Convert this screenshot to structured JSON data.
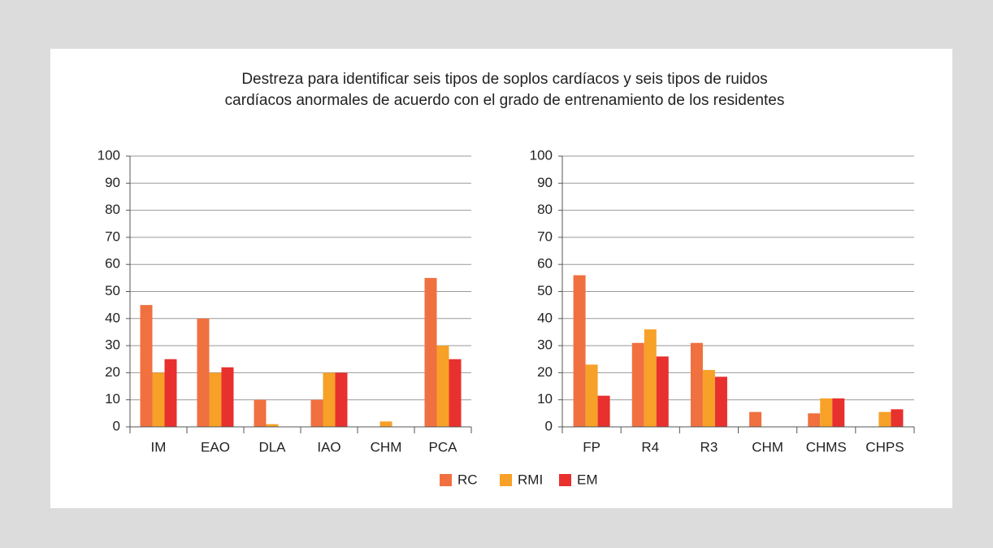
{
  "title": [
    "Destreza para identificar seis tipos de soplos cardíacos y seis tipos de ruidos",
    "cardíacos anormales de acuerdo con el grado de entrenamiento de los residentes"
  ],
  "chart_data": [
    {
      "type": "bar",
      "categories": [
        "IM",
        "EAO",
        "DLA",
        "IAO",
        "CHM",
        "PCA"
      ],
      "series": [
        {
          "name": "RC",
          "color": "#f07040",
          "values": [
            45,
            40,
            10,
            10,
            0,
            55
          ]
        },
        {
          "name": "RMI",
          "color": "#f7a128",
          "values": [
            20,
            20,
            1,
            20,
            2,
            30
          ]
        },
        {
          "name": "EM",
          "color": "#e8302e",
          "values": [
            25,
            22,
            0,
            20,
            0,
            25
          ]
        }
      ],
      "ylim": [
        0,
        100
      ],
      "yticks": [
        0,
        10,
        20,
        30,
        40,
        50,
        60,
        70,
        80,
        90,
        100
      ],
      "grid": true
    },
    {
      "type": "bar",
      "categories": [
        "FP",
        "R4",
        "R3",
        "CHM",
        "CHMS",
        "CHPS"
      ],
      "series": [
        {
          "color": "#f07040",
          "values": [
            56,
            31,
            31,
            5.5,
            5,
            0
          ]
        },
        {
          "color": "#f7a128",
          "values": [
            23,
            36,
            21,
            0,
            10.5,
            5.5
          ]
        },
        {
          "color": "#e8302e",
          "values": [
            11.5,
            26,
            18.5,
            0,
            10.5,
            6.5
          ]
        }
      ],
      "ylim": [
        0,
        100
      ],
      "yticks": [
        0,
        10,
        20,
        30,
        40,
        50,
        60,
        70,
        80,
        90,
        100
      ],
      "grid": true
    }
  ]
}
